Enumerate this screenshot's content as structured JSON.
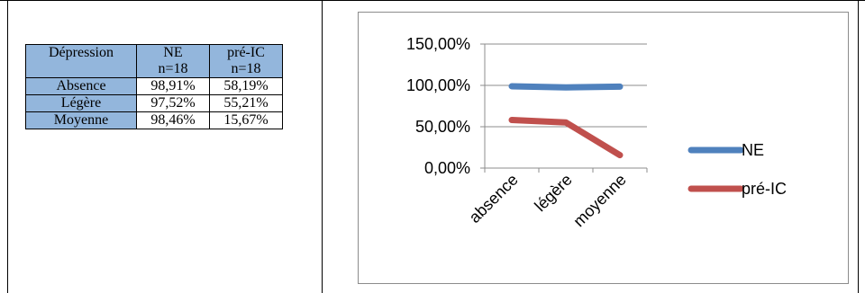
{
  "table": {
    "headers": [
      {
        "line1": "Dépression",
        "line2": ""
      },
      {
        "line1": "NE",
        "line2": "n=18"
      },
      {
        "line1": "pré-IC",
        "line2": "n=18"
      }
    ],
    "rows": [
      {
        "label": "Absence",
        "ne": "98,91%",
        "preic": "58,19%"
      },
      {
        "label": "Légère",
        "ne": "97,52%",
        "preic": "55,21%"
      },
      {
        "label": "Moyenne",
        "ne": "98,46%",
        "preic": "15,67%"
      }
    ],
    "header_color": "#93b6dc"
  },
  "chart_data": {
    "type": "line",
    "categories": [
      "absence",
      "légère",
      "moyenne"
    ],
    "series": [
      {
        "name": "NE",
        "values": [
          98.91,
          97.52,
          98.46
        ],
        "color": "#4f81bd"
      },
      {
        "name": "pré-IC",
        "values": [
          58.19,
          55.21,
          15.67
        ],
        "color": "#c0504d"
      }
    ],
    "ylim": [
      0,
      150
    ],
    "yticks": [
      "0,00%",
      "50,00%",
      "100,00%",
      "150,00%"
    ],
    "ytick_values": [
      0,
      50,
      100,
      150
    ],
    "grid": true,
    "legend_position": "right",
    "title": "",
    "xlabel": "",
    "ylabel": ""
  }
}
